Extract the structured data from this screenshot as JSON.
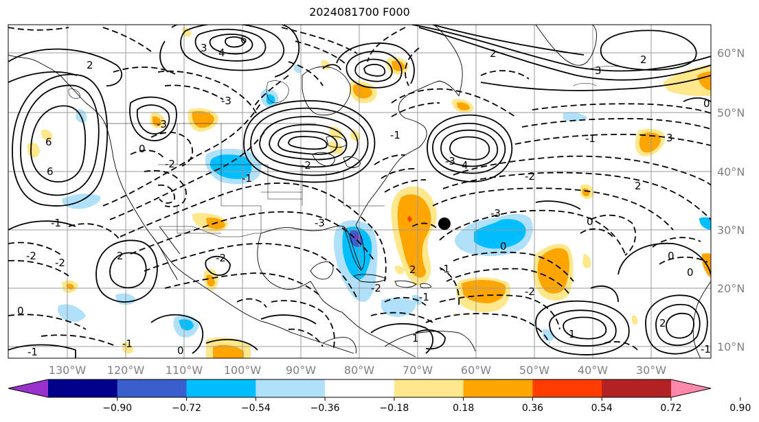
{
  "title": "2024081700 F000",
  "lon_labels": [
    "130°W",
    "120°W",
    "110°W",
    "100°W",
    "90°W",
    "80°W",
    "70°W",
    "60°W",
    "50°W",
    "40°W",
    "30°W"
  ],
  "lat_labels": [
    "60°N",
    "50°N",
    "40°N",
    "30°N",
    "20°N",
    "10°N"
  ],
  "colorbar": {
    "ticks": [
      "−0.90",
      "−0.72",
      "−0.54",
      "−0.36",
      "−0.18",
      "0.18",
      "0.36",
      "0.54",
      "0.72",
      "0.90"
    ],
    "colors": [
      "#9932cc",
      "#00008b",
      "#3a5fcd",
      "#00bfff",
      "#b0e0fa",
      "#ffffff",
      "#ffe88c",
      "#ffa500",
      "#ff3c00",
      "#b22222",
      "#ff88aa"
    ]
  },
  "contour_labels": [
    "6",
    "4",
    "3",
    "2",
    "2",
    "3",
    "0",
    "-3",
    "6",
    "6",
    "-3",
    "-2",
    "-2",
    "0",
    "4",
    "-3",
    "-2",
    "2",
    "-1",
    "-2",
    "2",
    "-1",
    "0",
    "-3",
    "-1",
    "-2",
    "-3",
    "-1",
    "2",
    "-1",
    "0",
    "2",
    "0",
    "-1",
    "-2",
    "3",
    "-2",
    "2",
    "-2",
    "0",
    "1",
    "-1",
    "0",
    "1",
    "-1",
    "-1",
    "0"
  ]
}
